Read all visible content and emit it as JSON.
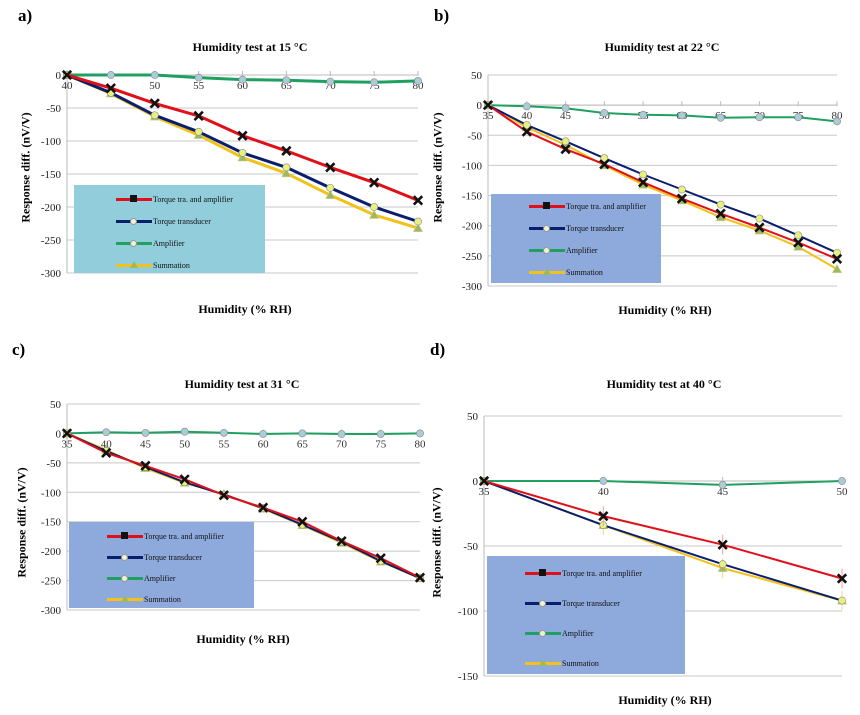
{
  "figure": {
    "series_style": [
      {
        "name": "Torque tra. and amplifier",
        "color": "#E0101A",
        "marker": "x",
        "marker_color": "#111111"
      },
      {
        "name": "Torque transducer",
        "color": "#0A1E6E",
        "marker": "circle",
        "marker_color": "#E8F080"
      },
      {
        "name": "Amplifier",
        "color": "#1FA060",
        "marker": "circle",
        "marker_color": "#A9CCD6"
      },
      {
        "name": "Summation",
        "color": "#F2C21A",
        "marker": "triangle",
        "marker_color": "#9DB860"
      }
    ]
  },
  "chart_data": [
    {
      "id": "a",
      "panel_label": "a)",
      "type": "line",
      "title": "Humidity test at 15 °C",
      "xlabel": "Humidity (% RH)",
      "ylabel": "Response diff. (nV/V)",
      "x": [
        40,
        45,
        50,
        55,
        60,
        65,
        70,
        75,
        80
      ],
      "x_tick_labels": [
        "40",
        "",
        "50",
        "55",
        "60",
        "65",
        "70",
        "75",
        "80"
      ],
      "ylim": [
        -300,
        0
      ],
      "y_ticks": [
        0,
        -50,
        -100,
        -150,
        -200,
        -250,
        -300
      ],
      "grid": true,
      "legend_position": "bottom-left",
      "legend_bg": "#92CDDC",
      "series": [
        {
          "name": "Torque tra. and amplifier",
          "values": [
            0,
            -20,
            -43,
            -62,
            -92,
            -115,
            -140,
            -163,
            -190
          ]
        },
        {
          "name": "Torque transducer",
          "values": [
            0,
            -27,
            -61,
            -86,
            -118,
            -140,
            -171,
            -200,
            -222
          ]
        },
        {
          "name": "Amplifier",
          "values": [
            0,
            0,
            0,
            -4,
            -7,
            -8,
            -10,
            -11,
            -9
          ]
        },
        {
          "name": "Summation",
          "values": [
            0,
            -28,
            -63,
            -91,
            -125,
            -149,
            -182,
            -212,
            -232
          ]
        }
      ]
    },
    {
      "id": "b",
      "panel_label": "b)",
      "type": "line",
      "title": "Humidity test at 22 °C",
      "xlabel": "Humidity (% RH)",
      "ylabel": "Response diff. (nV/V)",
      "x": [
        35,
        40,
        45,
        50,
        55,
        60,
        65,
        70,
        75,
        80
      ],
      "x_tick_labels": [
        "35",
        "40",
        "45",
        "50",
        "55",
        "60",
        "65",
        "70",
        "75",
        "80"
      ],
      "ylim": [
        -300,
        50
      ],
      "y_ticks": [
        50,
        0,
        -50,
        -100,
        -150,
        -200,
        -250,
        -300
      ],
      "grid": true,
      "legend_position": "bottom-left",
      "legend_bg": "#8EA9DB",
      "series": [
        {
          "name": "Torque tra. and amplifier",
          "values": [
            0,
            -44,
            -73,
            -98,
            -128,
            -155,
            -180,
            -203,
            -228,
            -255
          ]
        },
        {
          "name": "Torque transducer",
          "values": [
            0,
            -33,
            -60,
            -88,
            -115,
            -140,
            -165,
            -188,
            -216,
            -245
          ]
        },
        {
          "name": "Amplifier",
          "values": [
            0,
            -2,
            -5,
            -13,
            -16,
            -17,
            -21,
            -20,
            -20,
            -27
          ]
        },
        {
          "name": "Summation",
          "values": [
            0,
            -37,
            -66,
            -100,
            -132,
            -158,
            -186,
            -208,
            -235,
            -272
          ]
        }
      ]
    },
    {
      "id": "c",
      "panel_label": "c)",
      "type": "line",
      "title": "Humidity test at 31 °C",
      "xlabel": "Humidity (% RH)",
      "ylabel": "Response diff. (nV/V)",
      "x": [
        35,
        40,
        45,
        50,
        55,
        60,
        65,
        70,
        75,
        80
      ],
      "x_tick_labels": [
        "35",
        "40",
        "45",
        "50",
        "55",
        "60",
        "65",
        "70",
        "75",
        "80"
      ],
      "ylim": [
        -300,
        50
      ],
      "y_ticks": [
        50,
        0,
        -50,
        -100,
        -150,
        -200,
        -250,
        -300
      ],
      "grid": true,
      "legend_position": "bottom-left",
      "legend_bg": "#8EA9DB",
      "series": [
        {
          "name": "Torque tra. and amplifier",
          "values": [
            0,
            -33,
            -55,
            -78,
            -105,
            -126,
            -150,
            -183,
            -212,
            -245
          ]
        },
        {
          "name": "Torque transducer",
          "values": [
            0,
            -30,
            -57,
            -83,
            -104,
            -127,
            -155,
            -184,
            -217,
            -246
          ]
        },
        {
          "name": "Amplifier",
          "values": [
            0,
            2,
            1,
            3,
            1,
            -1,
            0,
            -1,
            -1,
            0
          ]
        },
        {
          "name": "Summation",
          "values": [
            0,
            -28,
            -59,
            -84,
            -103,
            -128,
            -156,
            -186,
            -218,
            -246
          ]
        }
      ]
    },
    {
      "id": "d",
      "panel_label": "d)",
      "type": "line",
      "title": "Humidity test at 40 °C",
      "xlabel": "Humidity (% RH)",
      "ylabel": "Response diff. (nV/V)",
      "x": [
        35,
        40,
        45,
        50
      ],
      "x_tick_labels": [
        "35",
        "40",
        "45",
        "50"
      ],
      "ylim": [
        -150,
        50
      ],
      "y_ticks": [
        50,
        0,
        -50,
        -100,
        -150
      ],
      "grid": true,
      "legend_position": "bottom-left",
      "legend_bg": "#8EA9DB",
      "series": [
        {
          "name": "Torque tra. and amplifier",
          "values": [
            0,
            -27,
            -49,
            -75
          ]
        },
        {
          "name": "Torque transducer",
          "values": [
            0,
            -34,
            -64,
            -92
          ]
        },
        {
          "name": "Amplifier",
          "values": [
            0,
            0,
            -3,
            0
          ]
        },
        {
          "name": "Summation",
          "values": [
            0,
            -34,
            -67,
            -92
          ]
        }
      ]
    }
  ]
}
